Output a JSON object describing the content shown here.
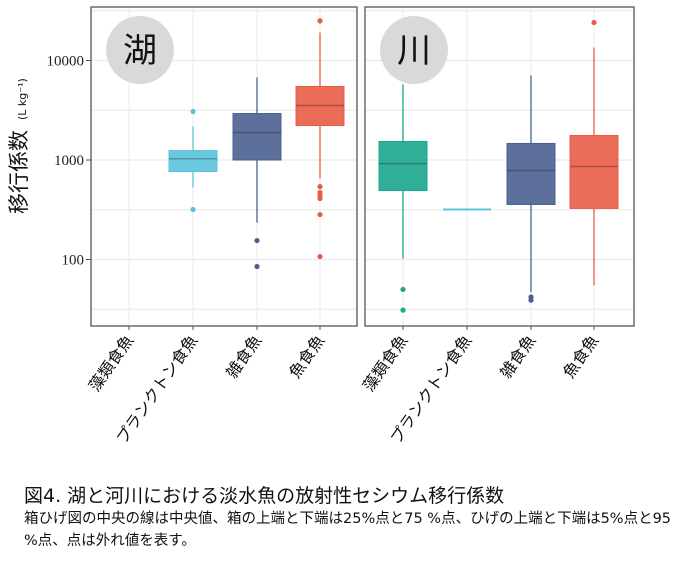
{
  "chart_data": {
    "type": "box",
    "ylabel": "移行係数",
    "ylabel_unit": "(L kg⁻¹)",
    "yscale": "log",
    "ylim": [
      22,
      35000
    ],
    "yticks": [
      100,
      1000,
      10000
    ],
    "ytick_labels": [
      "100",
      "1000",
      "10000"
    ],
    "grid": true,
    "categories": [
      "藻類食魚",
      "プランクトン食魚",
      "雑食魚",
      "魚食魚"
    ],
    "colors": [
      "#1aa58c",
      "#5bc3db",
      "#4a6090",
      "#e85c47"
    ],
    "panels": [
      {
        "label": "湖",
        "boxes": [
          null,
          {
            "q1": 766,
            "median": 1030,
            "q3": 1245,
            "whisker_low": 530,
            "whisker_high": 2170,
            "outliers": [
              3070,
              318
            ]
          },
          {
            "q1": 1000,
            "median": 1890,
            "q3": 2930,
            "whisker_low": 235,
            "whisker_high": 6750,
            "outliers": [
              155,
              85
            ]
          },
          {
            "q1": 2220,
            "median": 3530,
            "q3": 5480,
            "whisker_low": 650,
            "whisker_high": 19100,
            "outliers": [
              25000,
              540,
              470,
              440,
              410,
              283,
              107
            ]
          }
        ]
      },
      {
        "label": "川",
        "boxes": [
          {
            "q1": 493,
            "median": 920,
            "q3": 1535,
            "whisker_low": 102,
            "whisker_high": 5740,
            "outliers": [
              50,
              31
            ]
          },
          {
            "q1": 318,
            "median": 318,
            "q3": 318,
            "whisker_low": 318,
            "whisker_high": 318,
            "outliers": []
          },
          {
            "q1": 357,
            "median": 784,
            "q3": 1466,
            "whisker_low": 47,
            "whisker_high": 7060,
            "outliers": [
              42,
              39
            ]
          },
          {
            "q1": 326,
            "median": 860,
            "q3": 1763,
            "whisker_low": 55,
            "whisker_high": 13500,
            "outliers": [
              24100
            ]
          }
        ]
      }
    ]
  },
  "caption": {
    "title": "図4. 湖と河川における淡水魚の放射性セシウム移行係数",
    "body": "箱ひげ図の中央の線は中央値、箱の上端と下端は25%点と75 %点、ひげの上端と下端は5%点と95 %点、点は外れ値を表す。"
  }
}
